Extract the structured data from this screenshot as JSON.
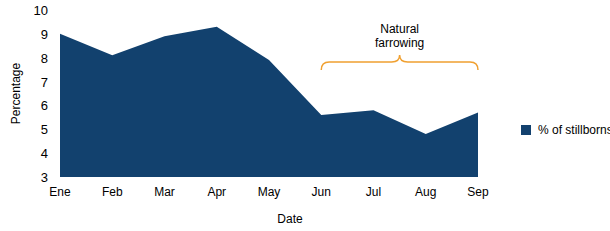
{
  "chart_data": {
    "type": "area",
    "x_label": "Date",
    "y_label": "Percentage",
    "categories": [
      "Ene",
      "Feb",
      "Mar",
      "Apr",
      "May",
      "Jun",
      "Jul",
      "Aug",
      "Sep"
    ],
    "series": [
      {
        "name": "% of stillborns",
        "color": "#12416e",
        "values": [
          9.0,
          8.1,
          8.9,
          9.3,
          7.9,
          5.6,
          5.8,
          4.8,
          5.7
        ]
      }
    ],
    "ylim": [
      3,
      10
    ],
    "yticks": [
      3,
      4,
      5,
      6,
      7,
      8,
      9,
      10
    ],
    "grid": false,
    "legend": "right",
    "annotations": [
      {
        "text": "Natural farrowing",
        "from": "Jun",
        "to": "Sep",
        "color": "#f0a030"
      }
    ]
  }
}
